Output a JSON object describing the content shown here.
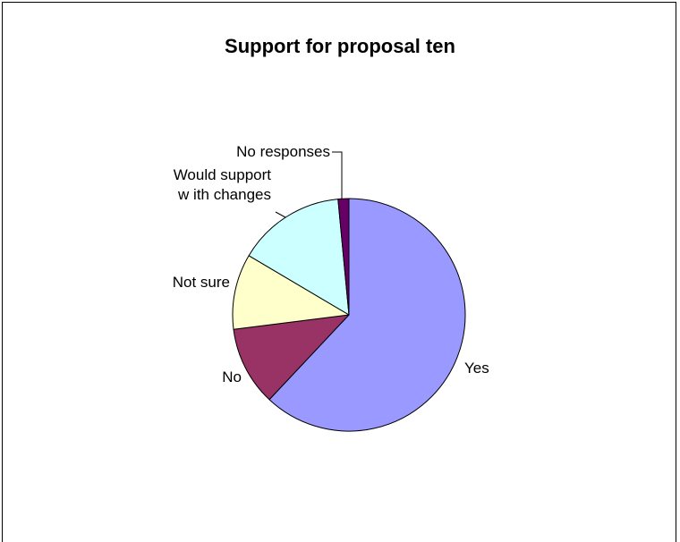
{
  "chart_data": {
    "type": "pie",
    "title": "Support for proposal ten",
    "slices": [
      {
        "label": "Yes",
        "value": 62,
        "color": "#9999ff"
      },
      {
        "label": "No",
        "value": 11,
        "color": "#993366"
      },
      {
        "label": "Not sure",
        "value": 10.5,
        "color": "#ffffcc"
      },
      {
        "label": "Would support with changes",
        "label_lines": [
          "Would support",
          "w ith changes"
        ],
        "value": 15,
        "color": "#ccffff"
      },
      {
        "label": "No responses",
        "value": 1.5,
        "color": "#660066"
      }
    ],
    "start_angle": "12 o'clock",
    "direction": "clockwise",
    "legend": "none",
    "grid": false
  }
}
